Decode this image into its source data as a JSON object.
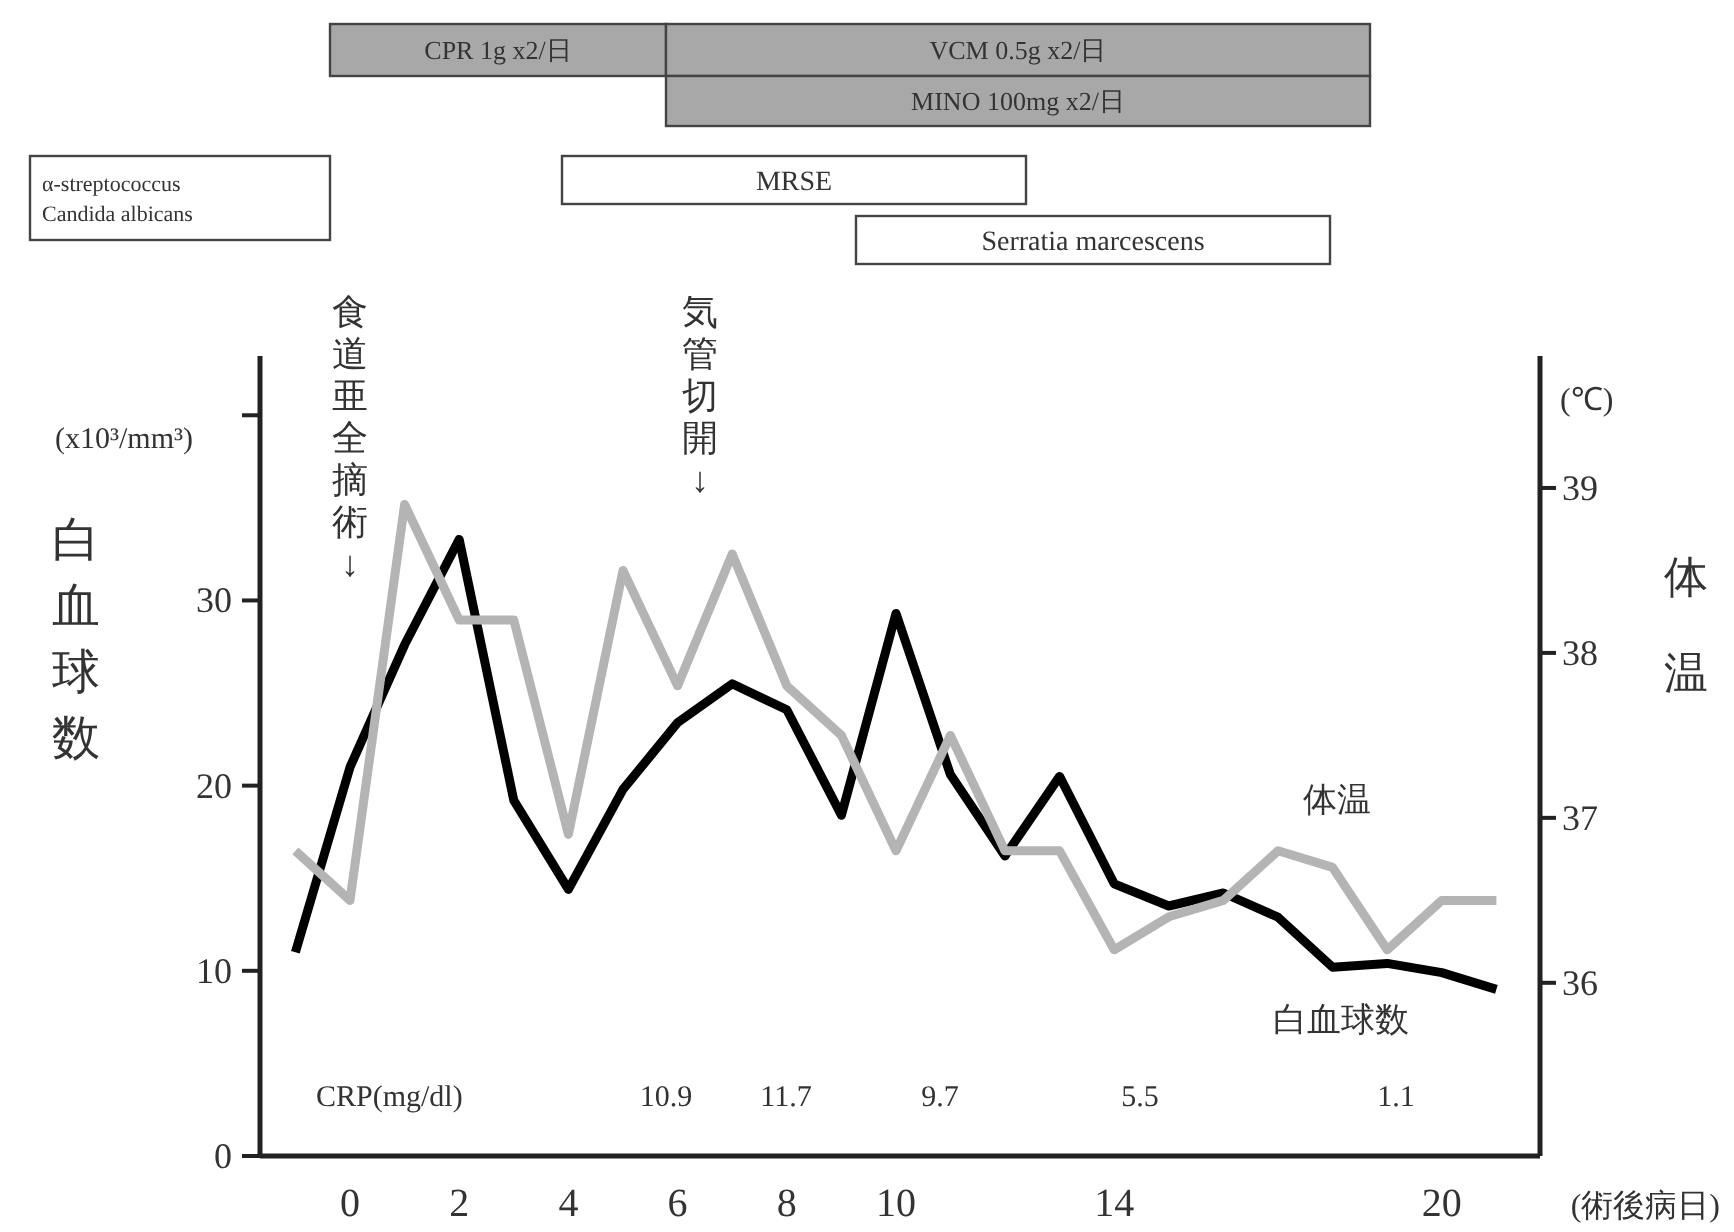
{
  "chart_data": {
    "type": "line",
    "xlabel": "(術後病日)",
    "ylabel": "白血球数",
    "y2label": "体温",
    "x": [
      -1,
      0,
      1,
      2,
      3,
      4,
      5,
      6,
      7,
      8,
      9,
      10,
      11,
      12,
      13,
      14,
      15,
      16,
      17,
      18,
      19,
      20,
      21
    ],
    "xlim": [
      -1.65,
      21.8
    ],
    "xticks": [
      0,
      2,
      4,
      6,
      8,
      10,
      14,
      20
    ],
    "ylim": [
      0,
      43.2
    ],
    "yticks": [
      0,
      10,
      20,
      30,
      {
        "value": 40,
        "label": null
      }
    ],
    "y2lim": [
      34.95,
      39.8
    ],
    "y2ticks": [
      36,
      37,
      38,
      39
    ],
    "series": [
      {
        "name": "白血球数",
        "color": "#000000",
        "values": [
          11.0,
          21.0,
          27.6,
          33.3,
          19.2,
          14.4,
          19.8,
          23.4,
          25.5,
          24.1,
          18.4,
          29.3,
          20.6,
          16.2,
          20.5,
          14.7,
          13.5,
          14.2,
          12.9,
          10.2,
          10.4,
          9.9,
          9.0
        ]
      },
      {
        "name": "体温",
        "color": "#b4b4b4",
        "axis": "y2",
        "values": [
          36.8,
          36.5,
          38.9,
          38.2,
          38.2,
          36.9,
          38.5,
          37.8,
          38.6,
          37.8,
          37.5,
          36.8,
          37.5,
          36.8,
          36.8,
          36.2,
          36.4,
          36.5,
          36.8,
          36.7,
          36.2,
          36.5,
          36.5
        ]
      }
    ],
    "marker": "none",
    "line_style": "solid",
    "annotations": [
      "(x10³/mm³)",
      "(℃)",
      "α-streptococcus\nCandida albicans",
      "CRP(mg/dl)",
      "食道亜全摘術↓",
      "気管切開↓",
      "10.9",
      "11.7",
      "9.7",
      "5.5",
      "1.1",
      "CPR 1g x2/日",
      "VCM 0.5g x2/日",
      "MINO 100mg x2/日",
      "MRSE",
      "Serratia marcescens"
    ]
  }
}
